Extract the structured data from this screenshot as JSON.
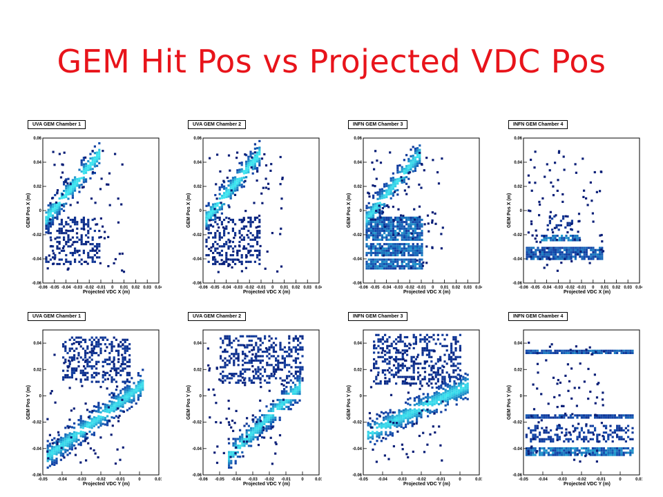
{
  "slide": {
    "title": "GEM Hit Pos vs Projected VDC Pos"
  },
  "chart_data": [
    {
      "type": "heatmap",
      "panel": "top-1",
      "title": "UVA GEM Chamber 1",
      "xlabel": "Projected VDC X (m)",
      "ylabel": "GEM Pos X (m)",
      "xlim": [
        -0.06,
        0.04
      ],
      "ylim": [
        -0.06,
        0.06
      ],
      "xticks": [
        "-0.06",
        "-0.05",
        "-0.04",
        "-0.03",
        "-0.02",
        "-0.01",
        "0",
        "0.01",
        "0.02",
        "0.03",
        "0.04"
      ],
      "yticks": [
        "0.06",
        "0.04",
        "0.02",
        "0",
        "-0.02",
        "-0.04",
        "-0.06"
      ],
      "bands": [
        {
          "x": [
            -0.058,
            -0.012
          ],
          "y": [
            -0.006,
            0.048
          ],
          "slope": true,
          "intensity": 0.9
        }
      ],
      "blocks": [
        {
          "x": [
            -0.058,
            -0.012
          ],
          "y": [
            -0.045,
            -0.005
          ],
          "intensity": 0.25
        }
      ],
      "gaps": [
        0.009,
        0.03
      ]
    },
    {
      "type": "heatmap",
      "panel": "top-2",
      "title": "UVA GEM Chamber 2",
      "xlabel": "Projected VDC X (m)",
      "ylabel": "GEM Pos X (m)",
      "xlim": [
        -0.06,
        0.04
      ],
      "ylim": [
        -0.06,
        0.06
      ],
      "xticks": [
        "-0.06",
        "-0.05",
        "-0.04",
        "-0.03",
        "-0.02",
        "-0.01",
        "0",
        "0.01",
        "0.02",
        "0.03",
        "0.04"
      ],
      "yticks": [
        "0.06",
        "0.04",
        "0.02",
        "0",
        "-0.02",
        "-0.04",
        "-0.06"
      ],
      "bands": [
        {
          "x": [
            -0.058,
            -0.012
          ],
          "y": [
            -0.006,
            0.048
          ],
          "slope": true,
          "intensity": 0.9
        }
      ],
      "blocks": [
        {
          "x": [
            -0.058,
            -0.012
          ],
          "y": [
            -0.045,
            -0.005
          ],
          "intensity": 0.22
        }
      ],
      "gaps": [
        0.009,
        0.03
      ]
    },
    {
      "type": "heatmap",
      "panel": "top-3",
      "title": "INFN GEM Chamber 3",
      "xlabel": "Projected VDC X (m)",
      "ylabel": "GEM Pos X (m)",
      "xlim": [
        -0.06,
        0.04
      ],
      "ylim": [
        -0.06,
        0.06
      ],
      "xticks": [
        "-0.06",
        "-0.05",
        "-0.04",
        "-0.03",
        "-0.02",
        "-0.01",
        "0",
        "0.01",
        "0.02",
        "0.03",
        "0.04"
      ],
      "yticks": [
        "0.06",
        "0.04",
        "0.02",
        "0",
        "-0.02",
        "-0.04",
        "-0.06"
      ],
      "bands": [
        {
          "x": [
            -0.058,
            -0.012
          ],
          "y": [
            -0.006,
            0.048
          ],
          "slope": true,
          "intensity": 0.85
        }
      ],
      "blocks": [
        {
          "x": [
            -0.058,
            -0.01
          ],
          "y": [
            -0.048,
            -0.005
          ],
          "intensity": 0.7
        }
      ],
      "gaps": [
        0.009,
        0.03,
        -0.025,
        -0.038
      ]
    },
    {
      "type": "heatmap",
      "panel": "top-4",
      "title": "INFN GEM Chamber 4",
      "xlabel": "Projected VDC X (m)",
      "ylabel": "GEM Pos X (m)",
      "xlim": [
        -0.06,
        0.04
      ],
      "ylim": [
        -0.06,
        0.06
      ],
      "xticks": [
        "-0.06",
        "-0.05",
        "-0.04",
        "-0.03",
        "-0.02",
        "-0.01",
        "0",
        "0.01",
        "0.02",
        "0.03",
        "0.04"
      ],
      "yticks": [
        "0.06",
        "0.04",
        "0.02",
        "0",
        "-0.02",
        "-0.04",
        "-0.06"
      ],
      "bands": [],
      "blocks": [
        {
          "x": [
            -0.058,
            0.008
          ],
          "y": [
            -0.04,
            -0.03
          ],
          "intensity": 0.6
        },
        {
          "x": [
            -0.045,
            -0.012
          ],
          "y": [
            -0.025,
            -0.02
          ],
          "intensity": 0.75
        },
        {
          "x": [
            -0.04,
            -0.018
          ],
          "y": [
            -0.015,
            -0.004
          ],
          "intensity": 0.3
        }
      ],
      "gaps": []
    },
    {
      "type": "heatmap",
      "panel": "bottom-1",
      "title": "UVA GEM Chamber 1",
      "xlabel": "Projected VDC Y (m)",
      "ylabel": "GEM Pos Y (m)",
      "xlim": [
        -0.05,
        0.01
      ],
      "ylim": [
        -0.06,
        0.05
      ],
      "xticks": [
        "-0.05",
        "-0.04",
        "-0.03",
        "-0.02",
        "-0.01",
        "0",
        "0.01"
      ],
      "yticks": [
        "0.04",
        "0.02",
        "0",
        "-0.02",
        "-0.04",
        "-0.06"
      ],
      "bands": [
        {
          "x": [
            -0.048,
            0.002
          ],
          "y": [
            -0.045,
            0.01
          ],
          "slope": true,
          "intensity": 0.85
        }
      ],
      "blocks": [
        {
          "x": [
            -0.04,
            -0.005
          ],
          "y": [
            0.01,
            0.045
          ],
          "intensity": 0.3
        }
      ],
      "gaps": [
        -0.013,
        -0.025
      ]
    },
    {
      "type": "heatmap",
      "panel": "bottom-2",
      "title": "UVA GEM Chamber 2",
      "xlabel": "Projected VDC Y (m)",
      "ylabel": "GEM Pos Y (m)",
      "xlim": [
        -0.06,
        0.01
      ],
      "ylim": [
        -0.06,
        0.05
      ],
      "xticks": [
        "-0.06",
        "-0.05",
        "-0.04",
        "-0.03",
        "-0.02",
        "-0.01",
        "0",
        "0.01"
      ],
      "yticks": [
        "0.04",
        "0.02",
        "0",
        "-0.02",
        "-0.04",
        "-0.06"
      ],
      "bands": [
        {
          "x": [
            -0.045,
            -0.002
          ],
          "y": [
            -0.045,
            0.008
          ],
          "slope": true,
          "intensity": 0.85
        }
      ],
      "blocks": [
        {
          "x": [
            -0.05,
            0.0
          ],
          "y": [
            0.01,
            0.046
          ],
          "intensity": 0.3
        }
      ],
      "gaps": [
        0.0,
        -0.012,
        -0.04
      ]
    },
    {
      "type": "heatmap",
      "panel": "bottom-3",
      "title": "INFN GEM Chamber 3",
      "xlabel": "Projected VDC Y (m)",
      "ylabel": "GEM Pos Y (m)",
      "xlim": [
        -0.05,
        0.01
      ],
      "ylim": [
        -0.06,
        0.05
      ],
      "xticks": [
        "-0.05",
        "-0.04",
        "-0.03",
        "-0.02",
        "-0.01",
        "0",
        "0.01"
      ],
      "yticks": [
        "0.04",
        "0.02",
        "0",
        "-0.02",
        "-0.04",
        "-0.06"
      ],
      "bands": [
        {
          "x": [
            -0.048,
            0.004
          ],
          "y": [
            -0.028,
            0.009
          ],
          "slope": true,
          "intensity": 0.85
        }
      ],
      "blocks": [
        {
          "x": [
            -0.045,
            0.0
          ],
          "y": [
            0.01,
            0.047
          ],
          "intensity": 0.3
        }
      ],
      "gaps": [
        -0.008,
        -0.025
      ]
    },
    {
      "type": "heatmap",
      "panel": "bottom-4",
      "title": "INFN GEM Chamber 4",
      "xlabel": "Projected VDC Y (m)",
      "ylabel": "GEM Pos Y (m)",
      "xlim": [
        -0.05,
        0.01
      ],
      "ylim": [
        -0.06,
        0.05
      ],
      "xticks": [
        "-0.05",
        "-0.04",
        "-0.03",
        "-0.02",
        "-0.01",
        "0",
        "0.01"
      ],
      "yticks": [
        "0.04",
        "0.02",
        "0",
        "-0.02",
        "-0.04",
        "-0.06"
      ],
      "bands": [],
      "blocks": [
        {
          "x": [
            -0.049,
            0.006
          ],
          "y": [
            0.033,
            0.035
          ],
          "intensity": 0.6
        },
        {
          "x": [
            -0.049,
            0.006
          ],
          "y": [
            -0.016,
            -0.014
          ],
          "intensity": 0.5
        },
        {
          "x": [
            -0.049,
            0.006
          ],
          "y": [
            -0.045,
            -0.039
          ],
          "intensity": 0.75
        },
        {
          "x": [
            -0.049,
            0.006
          ],
          "y": [
            -0.035,
            -0.022
          ],
          "intensity": 0.4
        }
      ],
      "gaps": []
    }
  ]
}
